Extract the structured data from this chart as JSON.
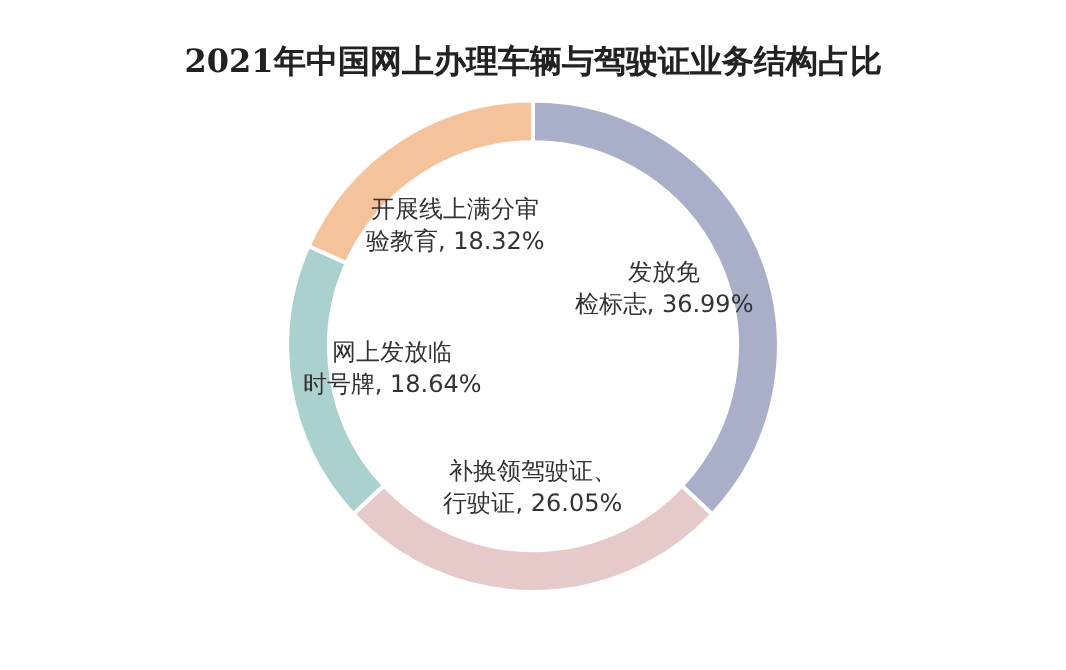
{
  "chart_data": {
    "type": "donut",
    "title": "2021年中国网上办理车辆与驾驶证业务结构占比",
    "categories": [
      "发放免检标志",
      "补换领驾驶证、行驶证",
      "网上发放临时号牌",
      "开展线上满分审验教育"
    ],
    "values": [
      36.99,
      26.05,
      18.64,
      18.32
    ],
    "value_labels": [
      "36.99%",
      "26.05%",
      "18.64%",
      "18.32%"
    ],
    "colors": [
      "#a9aec9",
      "#e6caca",
      "#abd1cf",
      "#f4c39b"
    ],
    "legend": false
  }
}
